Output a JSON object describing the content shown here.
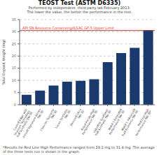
{
  "chart_data": {
    "type": "bar",
    "title": "TEOST Test (ASTM D6335)",
    "subtitle": [
      "Performed by independent, third-party lab February 2013.",
      "The lower the value, the better the performance in the test."
    ],
    "ylabel": "Total Deposit Weight (mg)",
    "footnote": "*Results for Red Line High Performance ranged from 29.1 mg to 31.4 mg. The average of the three tests run is shown in the graph.",
    "categories": [
      "Castrol Edge with\nTitanium Technology\nFull Synthetic 5W-30",
      "Amsoil Signature Series\n5W-30",
      "Chevron Supreme\n5W-30",
      "Lucas Synthetic\n5W-30",
      "Pennzoil Ultra\n5W-30",
      "Royal Purple High\nPerformance 5W-30",
      "Valvoline SynPower\nFull Synthetic 5W-30",
      "Mobil 1 Extended\nPerformance 5W-30",
      "Mobil 1 Advanced\nFuel Economy 5W-30",
      "Red Line High\nPerformance 5W-30*"
    ],
    "values": [
      4.1,
      5.8,
      7.9,
      9.5,
      9.8,
      10.5,
      17.5,
      21.2,
      23.4,
      30.7
    ],
    "color": "#1a3a6e",
    "ylim": [
      0,
      35
    ],
    "yticks": [
      0,
      5,
      10,
      15,
      20,
      25,
      30,
      35
    ],
    "grid": true,
    "annotations": [
      {
        "type": "hline",
        "y": 30.5,
        "label": "API SN Resource Conserving/ILSAC GF-5 Upper Limit",
        "color": "#cc3333"
      }
    ]
  }
}
